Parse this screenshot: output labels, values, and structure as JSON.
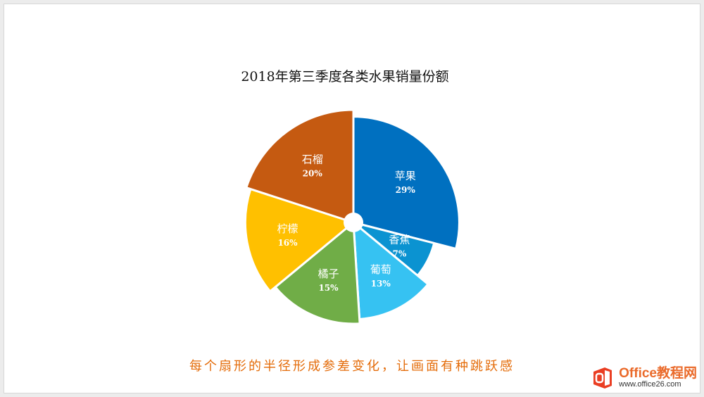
{
  "slide": {
    "caption": "每个扇形的半径形成参差变化，让画面有种跳跃感",
    "caption_color": "#e46c0a"
  },
  "watermark": {
    "name": "Office教程网",
    "url": "www.office26.com",
    "color": "#ea6a2a"
  },
  "chart_data": {
    "type": "pie",
    "title": "2018年第三季度各类水果销量份额",
    "slices": [
      {
        "label": "苹果",
        "value": 29,
        "value_label": "29%",
        "color": "#0070c0",
        "radius_scale": 0.94
      },
      {
        "label": "香蕉",
        "value": 7,
        "value_label": "7%",
        "color": "#0b93d1",
        "radius_scale": 0.74
      },
      {
        "label": "葡萄",
        "value": 13,
        "value_label": "13%",
        "color": "#36c2f2",
        "radius_scale": 0.86
      },
      {
        "label": "橘子",
        "value": 15,
        "value_label": "15%",
        "color": "#70ad47",
        "radius_scale": 0.9
      },
      {
        "label": "柠檬",
        "value": 16,
        "value_label": "16%",
        "color": "#ffc000",
        "radius_scale": 0.96
      },
      {
        "label": "石榴",
        "value": 20,
        "value_label": "20%",
        "color": "#c55a11",
        "radius_scale": 1.0
      }
    ],
    "start_angle_deg": 0,
    "direction": "clockwise",
    "legend": "none",
    "data_labels": "inside"
  }
}
